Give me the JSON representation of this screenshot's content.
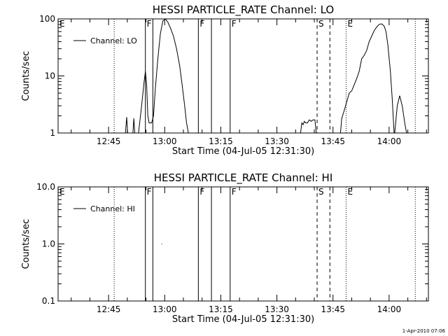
{
  "chart_data": [
    {
      "type": "line",
      "title": "HESSI PARTICLE_RATE Channel: LO",
      "xlabel": "Start Time (04-Jul-05 12:31:30)",
      "ylabel": "Counts/sec",
      "yscale": "log",
      "ylim": [
        1,
        100
      ],
      "xlim": [
        "12:31:30",
        "14:10:30"
      ],
      "x_ticks": [
        "12:45",
        "13:00",
        "13:15",
        "13:30",
        "13:45",
        "14:00"
      ],
      "y_ticks": [
        "1",
        "10",
        "100"
      ],
      "grid": false,
      "legend": {
        "placement": "top-left",
        "entries": [
          "Channel: LO"
        ]
      },
      "series": [
        {
          "name": "Channel: LO",
          "points": [
            [
              "12:49:30",
              1
            ],
            [
              "12:49:50",
              1.9
            ],
            [
              "12:50:05",
              1
            ],
            [
              "12:51:30",
              1
            ],
            [
              "12:51:45",
              1.8
            ],
            [
              "12:52:00",
              1
            ],
            [
              "12:53:00",
              1
            ],
            [
              "12:53:50",
              3
            ],
            [
              "12:54:30",
              8
            ],
            [
              "12:54:50",
              12
            ],
            [
              "12:55:10",
              7
            ],
            [
              "12:55:30",
              2
            ],
            [
              "12:55:50",
              1.5
            ],
            [
              "12:56:30",
              1.5
            ],
            [
              "12:57:00",
              2
            ],
            [
              "12:57:30",
              6
            ],
            [
              "12:58:10",
              20
            ],
            [
              "12:58:50",
              55
            ],
            [
              "12:59:30",
              92
            ],
            [
              "13:00:10",
              100
            ],
            [
              "13:00:50",
              88
            ],
            [
              "13:01:30",
              70
            ],
            [
              "13:02:20",
              50
            ],
            [
              "13:03:10",
              30
            ],
            [
              "13:04:00",
              15
            ],
            [
              "13:04:40",
              7
            ],
            [
              "13:05:20",
              3
            ],
            [
              "13:05:50",
              1.5
            ],
            [
              "13:06:20",
              1
            ],
            [
              "13:36:20",
              1
            ],
            [
              "13:36:40",
              1.5
            ],
            [
              "13:37:00",
              1.4
            ],
            [
              "13:37:20",
              1.6
            ],
            [
              "13:37:40",
              1.5
            ],
            [
              "13:38:10",
              1.5
            ],
            [
              "13:38:40",
              1.7
            ],
            [
              "13:39:10",
              1.6
            ],
            [
              "13:39:40",
              1.7
            ],
            [
              "13:40:10",
              1.7
            ],
            [
              "13:40:30",
              1
            ],
            [
              "13:47:00",
              1
            ],
            [
              "13:47:20",
              1.8
            ],
            [
              "13:48:00",
              2.5
            ],
            [
              "13:48:40",
              3.5
            ],
            [
              "13:49:20",
              5
            ],
            [
              "13:50:00",
              5.5
            ],
            [
              "13:50:40",
              7
            ],
            [
              "13:51:20",
              9
            ],
            [
              "13:52:00",
              12
            ],
            [
              "13:52:40",
              20
            ],
            [
              "13:53:20",
              23
            ],
            [
              "13:54:00",
              28
            ],
            [
              "13:54:40",
              40
            ],
            [
              "13:55:20",
              50
            ],
            [
              "13:56:00",
              62
            ],
            [
              "13:56:40",
              72
            ],
            [
              "13:57:20",
              80
            ],
            [
              "13:58:00",
              82
            ],
            [
              "13:58:40",
              75
            ],
            [
              "13:59:10",
              60
            ],
            [
              "13:59:40",
              35
            ],
            [
              "14:00:20",
              12
            ],
            [
              "14:00:50",
              4
            ],
            [
              "14:01:20",
              1
            ],
            [
              "14:01:30",
              1
            ],
            [
              "14:02:10",
              3
            ],
            [
              "14:02:50",
              4.5
            ],
            [
              "14:03:30",
              3
            ],
            [
              "14:04:10",
              1.5
            ],
            [
              "14:04:40",
              1
            ]
          ]
        }
      ],
      "markers": {
        "dotted": [
          "12:31:30",
          "12:46:30",
          "13:48:30",
          "14:07:00"
        ],
        "solid": [
          "12:54:50",
          "12:56:50",
          "13:09:00",
          "13:12:30",
          "13:17:30"
        ],
        "dashed": [
          "13:40:45",
          "13:44:10"
        ]
      },
      "annotations": [
        {
          "text": "E",
          "x": "12:31:30"
        },
        {
          "text": "F",
          "x": "12:54:50"
        },
        {
          "text": "F",
          "x": "13:09:00"
        },
        {
          "text": "F",
          "x": "13:17:30"
        },
        {
          "text": "S",
          "x": "13:40:45"
        },
        {
          "text": "E",
          "x": "13:48:30"
        }
      ]
    },
    {
      "type": "line",
      "title": "HESSI PARTICLE_RATE Channel: HI",
      "xlabel": "Start Time (04-Jul-05 12:31:30)",
      "ylabel": "Counts/sec",
      "yscale": "log",
      "ylim": [
        0.1,
        10
      ],
      "xlim": [
        "12:31:30",
        "14:10:30"
      ],
      "x_ticks": [
        "12:45",
        "13:00",
        "13:15",
        "13:30",
        "13:45",
        "14:00"
      ],
      "y_ticks": [
        "0.1",
        "1.0",
        "10.0"
      ],
      "grid": false,
      "legend": {
        "placement": "top-left",
        "entries": [
          "Channel: HI"
        ]
      },
      "series": [
        {
          "name": "Channel: HI",
          "points": [
            [
              "12:59:10",
              1.0
            ],
            [
              "12:59:20",
              1.0
            ]
          ]
        }
      ],
      "markers": {
        "dotted": [
          "12:31:30",
          "12:46:30",
          "13:48:30",
          "14:07:00"
        ],
        "solid": [
          "12:54:50",
          "12:56:50",
          "13:09:00",
          "13:12:30",
          "13:17:30"
        ],
        "dashed": [
          "13:40:45",
          "13:44:10"
        ]
      },
      "annotations": [
        {
          "text": "E",
          "x": "12:31:30"
        },
        {
          "text": "F",
          "x": "12:54:50"
        },
        {
          "text": "F",
          "x": "13:09:00"
        },
        {
          "text": "F",
          "x": "13:17:30"
        },
        {
          "text": "S",
          "x": "13:40:45"
        },
        {
          "text": "E",
          "x": "13:48:30"
        }
      ]
    }
  ],
  "footer": {
    "timestamp": "1-Apr-2010 07:06"
  }
}
